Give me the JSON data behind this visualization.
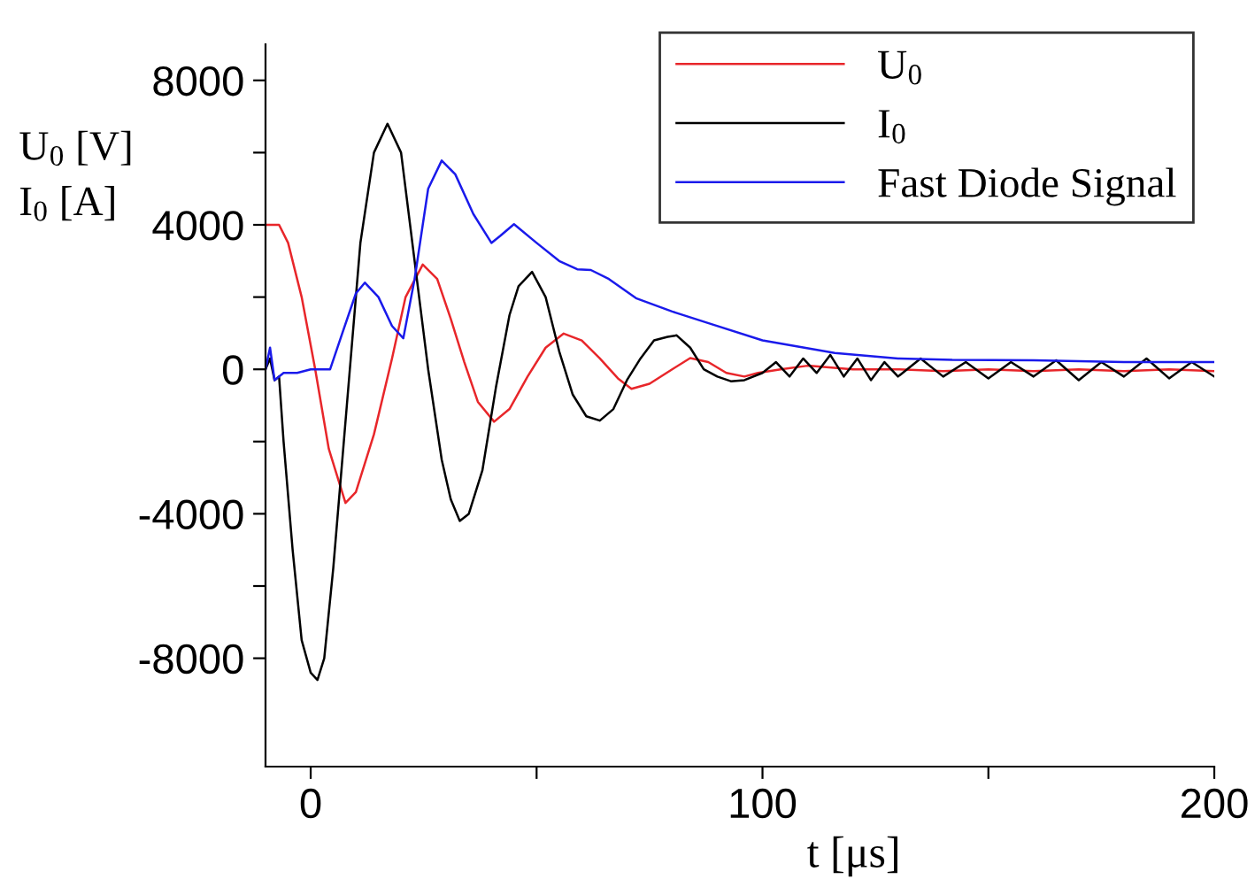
{
  "chart_data": {
    "type": "line",
    "xlabel": "t [μs]",
    "ylabel": "U$_{0}$ [V]\nI$_{0}$ [A]",
    "xlim": [
      -10,
      200
    ],
    "ylim": [
      -11000,
      9000
    ],
    "xticks": [
      0,
      {
        "value": 50,
        "label": null
      },
      100,
      {
        "value": 150,
        "label": null
      },
      200
    ],
    "yticks": [
      -8000,
      {
        "value": -6000,
        "label": null
      },
      -4000,
      {
        "value": -2000,
        "label": null
      },
      0,
      {
        "value": 2000,
        "label": null
      },
      4000,
      {
        "value": 6000,
        "label": null
      },
      8000
    ],
    "legend": "top right",
    "grid": false,
    "series": [
      {
        "name": "U$_{0}$",
        "color": "#e8262a",
        "x": [
          -10,
          -7,
          -5,
          -2,
          1,
          4,
          7.7,
          10,
          14,
          18,
          21,
          24.8,
          28,
          31,
          34,
          37,
          40.6,
          44,
          48,
          52,
          56,
          60,
          64,
          68,
          71,
          75,
          80,
          84,
          88,
          92,
          96,
          99,
          104,
          110,
          120,
          130,
          140,
          150,
          160,
          170,
          180,
          190,
          200
        ],
        "values": [
          4000,
          4000,
          3500,
          2000,
          0,
          -2200,
          -3700,
          -3400,
          -1800,
          300,
          2000,
          2900,
          2500,
          1400,
          200,
          -900,
          -1450,
          -1100,
          -200,
          600,
          990,
          800,
          300,
          -250,
          -540,
          -400,
          0,
          310,
          200,
          -100,
          -200,
          -100,
          0,
          100,
          0,
          0,
          -50,
          0,
          -50,
          0,
          -50,
          0,
          -50
        ]
      },
      {
        "name": "I$_{0}$",
        "color": "#000000",
        "x": [
          -10,
          -9,
          -8,
          -7,
          -6,
          -4,
          -2,
          0,
          1.5,
          3,
          5,
          8,
          11,
          14,
          17,
          20,
          23,
          26,
          29,
          31,
          33,
          35,
          38,
          41,
          44,
          46,
          49,
          52,
          55,
          58,
          61,
          64,
          67,
          70,
          73,
          76,
          79,
          81,
          84,
          87,
          90,
          93,
          96,
          100,
          103,
          106,
          109,
          112,
          115,
          118,
          121,
          124,
          127,
          130,
          135,
          140,
          145,
          150,
          155,
          160,
          165,
          170,
          175,
          180,
          185,
          190,
          195,
          200
        ],
        "values": [
          0,
          300,
          -300,
          -200,
          -2000,
          -5000,
          -7500,
          -8400,
          -8600,
          -8000,
          -5500,
          -1000,
          3500,
          6000,
          6800,
          6000,
          3000,
          0,
          -2500,
          -3600,
          -4200,
          -4000,
          -2800,
          -500,
          1500,
          2300,
          2700,
          2000,
          500,
          -700,
          -1300,
          -1420,
          -1100,
          -300,
          300,
          800,
          900,
          940,
          600,
          0,
          -200,
          -330,
          -300,
          -100,
          200,
          -200,
          300,
          -100,
          400,
          -200,
          300,
          -300,
          200,
          -200,
          300,
          -200,
          200,
          -250,
          200,
          -200,
          250,
          -300,
          200,
          -200,
          300,
          -250,
          200,
          -200
        ]
      },
      {
        "name": "Fast Diode Signal",
        "color": "#1a1aeb",
        "x": [
          -10,
          -9,
          -8,
          -6,
          -3,
          0,
          4.3,
          7,
          10,
          12,
          15,
          18,
          20.5,
          23,
          26,
          29,
          32,
          36,
          40,
          42,
          45,
          50,
          55,
          59,
          62,
          66,
          72,
          80,
          89,
          100,
          116,
          130,
          142,
          160,
          180,
          200
        ],
        "values": [
          0,
          600,
          -300,
          -100,
          -100,
          0,
          0,
          1000,
          2100,
          2400,
          2000,
          1200,
          860,
          2500,
          5000,
          5780,
          5400,
          4300,
          3500,
          3700,
          4020,
          3500,
          3000,
          2770,
          2750,
          2500,
          1970,
          1600,
          1240,
          800,
          450,
          300,
          260,
          250,
          200,
          200
        ]
      }
    ]
  }
}
